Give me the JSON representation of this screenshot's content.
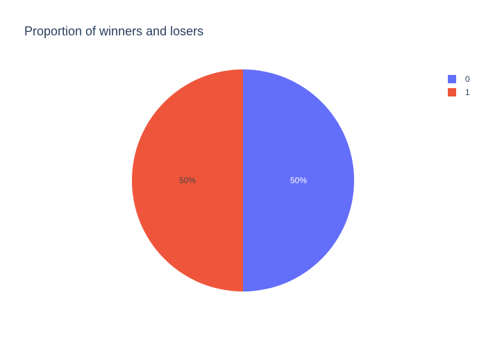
{
  "chart_data": {
    "type": "pie",
    "title": "Proportion of winners and losers",
    "labels": [
      "0",
      "1"
    ],
    "values": [
      50,
      50
    ],
    "percent_labels": [
      "50%",
      "50%"
    ],
    "colors": [
      "#636efa",
      "#ef553b"
    ],
    "label_colors": [
      "#ffffff",
      "#444444"
    ],
    "legend_placement": "top-right",
    "direction": "clockwise",
    "start_angle": "top"
  }
}
